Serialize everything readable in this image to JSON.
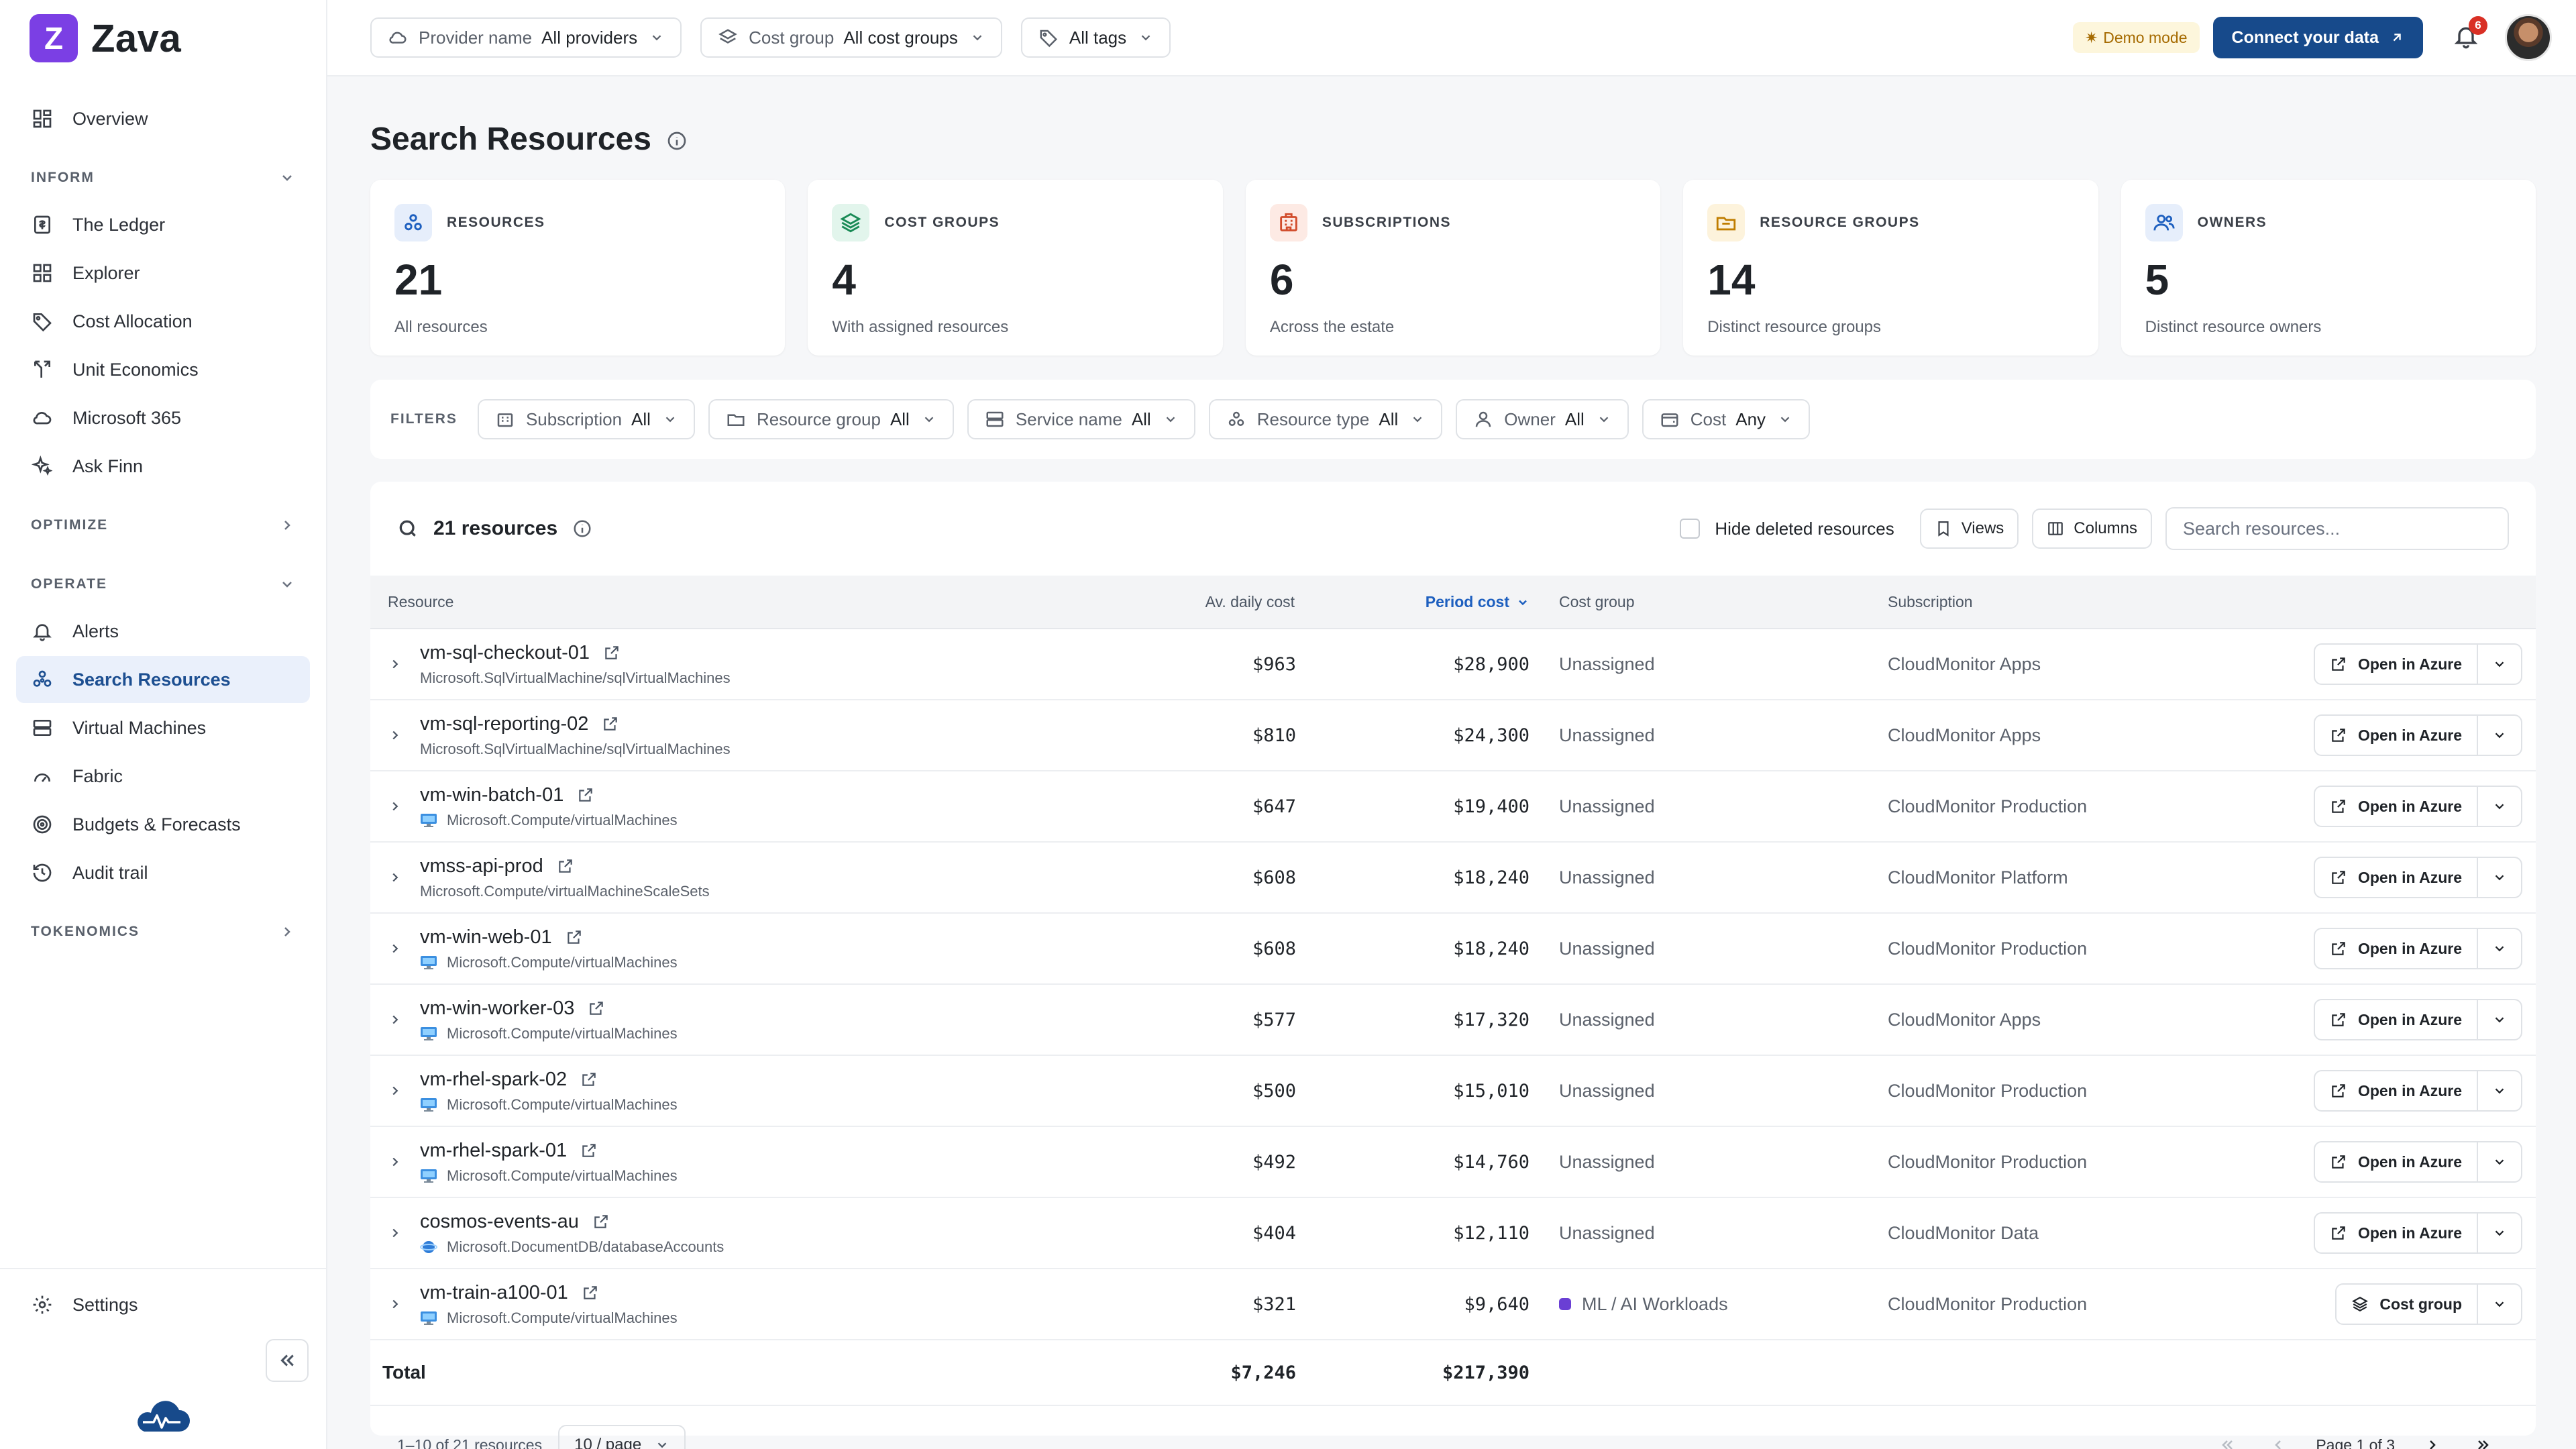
{
  "brand": {
    "logo_letter": "Z",
    "name": "Zava"
  },
  "sidebar": {
    "overview": "Overview",
    "sections": {
      "inform": "INFORM",
      "optimize": "OPTIMIZE",
      "operate": "OPERATE",
      "tokenomics": "TOKENOMICS"
    },
    "inform_items": [
      "The Ledger",
      "Explorer",
      "Cost Allocation",
      "Unit Economics",
      "Microsoft 365",
      "Ask Finn"
    ],
    "operate_items": [
      "Alerts",
      "Search Resources",
      "Virtual Machines",
      "Fabric",
      "Budgets & Forecasts",
      "Audit trail"
    ],
    "settings": "Settings"
  },
  "topbar": {
    "provider": {
      "key": "Provider name",
      "value": "All providers"
    },
    "cost_group": {
      "key": "Cost group",
      "value": "All cost groups"
    },
    "tags": {
      "value": "All tags"
    },
    "demo": "Demo mode",
    "connect": "Connect your data",
    "notifications": "6"
  },
  "page": {
    "title": "Search Resources"
  },
  "stats": [
    {
      "label": "RESOURCES",
      "value": "21",
      "sub": "All resources"
    },
    {
      "label": "COST GROUPS",
      "value": "4",
      "sub": "With assigned resources"
    },
    {
      "label": "SUBSCRIPTIONS",
      "value": "6",
      "sub": "Across the estate"
    },
    {
      "label": "RESOURCE GROUPS",
      "value": "14",
      "sub": "Distinct resource groups"
    },
    {
      "label": "OWNERS",
      "value": "5",
      "sub": "Distinct resource owners"
    }
  ],
  "filters": {
    "label": "FILTERS",
    "items": [
      {
        "key": "Subscription",
        "value": "All"
      },
      {
        "key": "Resource group",
        "value": "All"
      },
      {
        "key": "Service name",
        "value": "All"
      },
      {
        "key": "Resource type",
        "value": "All"
      },
      {
        "key": "Owner",
        "value": "All"
      },
      {
        "key": "Cost",
        "value": "Any"
      }
    ]
  },
  "table": {
    "count_label": "21 resources",
    "hide_deleted": "Hide deleted resources",
    "views": "Views",
    "columns_btn": "Columns",
    "search_placeholder": "Search resources...",
    "headers": {
      "resource": "Resource",
      "avg": "Av. daily cost",
      "period": "Period cost",
      "cost_group": "Cost group",
      "subscription": "Subscription"
    },
    "rows": [
      {
        "name": "vm-sql-checkout-01",
        "type": "Microsoft.SqlVirtualMachine/sqlVirtualMachines",
        "icon": "none",
        "avg": "$963",
        "period": "$28,900",
        "cost_group": "Unassigned",
        "subscription": "CloudMonitor Apps",
        "action": "Open in Azure"
      },
      {
        "name": "vm-sql-reporting-02",
        "type": "Microsoft.SqlVirtualMachine/sqlVirtualMachines",
        "icon": "none",
        "avg": "$810",
        "period": "$24,300",
        "cost_group": "Unassigned",
        "subscription": "CloudMonitor Apps",
        "action": "Open in Azure"
      },
      {
        "name": "vm-win-batch-01",
        "type": "Microsoft.Compute/virtualMachines",
        "icon": "vm",
        "avg": "$647",
        "period": "$19,400",
        "cost_group": "Unassigned",
        "subscription": "CloudMonitor Production",
        "action": "Open in Azure"
      },
      {
        "name": "vmss-api-prod",
        "type": "Microsoft.Compute/virtualMachineScaleSets",
        "icon": "none",
        "avg": "$608",
        "period": "$18,240",
        "cost_group": "Unassigned",
        "subscription": "CloudMonitor Platform",
        "action": "Open in Azure"
      },
      {
        "name": "vm-win-web-01",
        "type": "Microsoft.Compute/virtualMachines",
        "icon": "vm",
        "avg": "$608",
        "period": "$18,240",
        "cost_group": "Unassigned",
        "subscription": "CloudMonitor Production",
        "action": "Open in Azure"
      },
      {
        "name": "vm-win-worker-03",
        "type": "Microsoft.Compute/virtualMachines",
        "icon": "vm",
        "avg": "$577",
        "period": "$17,320",
        "cost_group": "Unassigned",
        "subscription": "CloudMonitor Apps",
        "action": "Open in Azure"
      },
      {
        "name": "vm-rhel-spark-02",
        "type": "Microsoft.Compute/virtualMachines",
        "icon": "vm",
        "avg": "$500",
        "period": "$15,010",
        "cost_group": "Unassigned",
        "subscription": "CloudMonitor Production",
        "action": "Open in Azure"
      },
      {
        "name": "vm-rhel-spark-01",
        "type": "Microsoft.Compute/virtualMachines",
        "icon": "vm",
        "avg": "$492",
        "period": "$14,760",
        "cost_group": "Unassigned",
        "subscription": "CloudMonitor Production",
        "action": "Open in Azure"
      },
      {
        "name": "cosmos-events-au",
        "type": "Microsoft.DocumentDB/databaseAccounts",
        "icon": "cosmos",
        "avg": "$404",
        "period": "$12,110",
        "cost_group": "Unassigned",
        "subscription": "CloudMonitor Data",
        "action": "Open in Azure"
      },
      {
        "name": "vm-train-a100-01",
        "type": "Microsoft.Compute/virtualMachines",
        "icon": "vm",
        "avg": "$321",
        "period": "$9,640",
        "cost_group": "ML / AI Workloads",
        "cost_group_tagged": true,
        "subscription": "CloudMonitor Production",
        "action": "Cost group"
      }
    ],
    "total": {
      "label": "Total",
      "avg": "$7,246",
      "period": "$217,390"
    }
  },
  "pager": {
    "range": "1–10 of 21 resources",
    "per_page": "10 / page",
    "page": "Page 1 of 3"
  },
  "colors": {
    "brand": "#7b3fe4",
    "accent": "#174a8b",
    "active_nav": "#eaf0fb",
    "tag": "#6a3fd4"
  }
}
